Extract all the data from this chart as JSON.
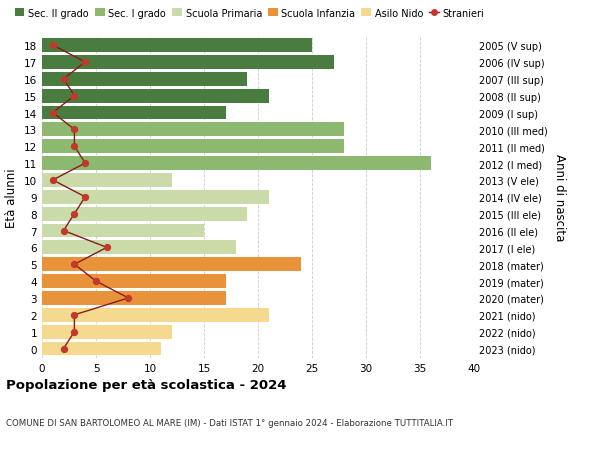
{
  "ages": [
    0,
    1,
    2,
    3,
    4,
    5,
    6,
    7,
    8,
    9,
    10,
    11,
    12,
    13,
    14,
    15,
    16,
    17,
    18
  ],
  "bar_values": [
    11,
    12,
    21,
    17,
    17,
    24,
    18,
    15,
    19,
    21,
    12,
    36,
    28,
    28,
    17,
    21,
    19,
    27,
    25
  ],
  "bar_colors": [
    "#f5d98e",
    "#f5d98e",
    "#f5d98e",
    "#e8923a",
    "#e8923a",
    "#e8923a",
    "#c8dba8",
    "#c8dba8",
    "#c8dba8",
    "#c8dba8",
    "#c8dba8",
    "#8db870",
    "#8db870",
    "#8db870",
    "#4a7c3f",
    "#4a7c3f",
    "#4a7c3f",
    "#4a7c3f",
    "#4a7c3f"
  ],
  "right_labels": [
    "2023 (nido)",
    "2022 (nido)",
    "2021 (nido)",
    "2020 (mater)",
    "2019 (mater)",
    "2018 (mater)",
    "2017 (I ele)",
    "2016 (II ele)",
    "2015 (III ele)",
    "2014 (IV ele)",
    "2013 (V ele)",
    "2012 (I med)",
    "2011 (II med)",
    "2010 (III med)",
    "2009 (I sup)",
    "2008 (II sup)",
    "2007 (III sup)",
    "2006 (IV sup)",
    "2005 (V sup)"
  ],
  "stranieri_values": [
    2,
    3,
    3,
    8,
    5,
    3,
    6,
    2,
    3,
    4,
    1,
    4,
    3,
    3,
    1,
    3,
    2,
    4,
    1
  ],
  "legend_labels": [
    "Sec. II grado",
    "Sec. I grado",
    "Scuola Primaria",
    "Scuola Infanzia",
    "Asilo Nido",
    "Stranieri"
  ],
  "legend_colors": [
    "#4a7c3f",
    "#8db870",
    "#c8dba8",
    "#e8923a",
    "#f5d98e",
    "#c0392b"
  ],
  "ylabel_left": "Età alunni",
  "ylabel_right": "Anni di nascita",
  "title": "Popolazione per età scolastica - 2024",
  "subtitle": "COMUNE DI SAN BARTOLOMEO AL MARE (IM) - Dati ISTAT 1° gennaio 2024 - Elaborazione TUTTITALIA.IT",
  "xlim": [
    0,
    40
  ],
  "xticks": [
    0,
    5,
    10,
    15,
    20,
    25,
    30,
    35,
    40
  ],
  "grid_color": "#cccccc",
  "bg_color": "#ffffff",
  "stranieri_line_color": "#8b1a1a",
  "stranieri_dot_color": "#c0392b"
}
